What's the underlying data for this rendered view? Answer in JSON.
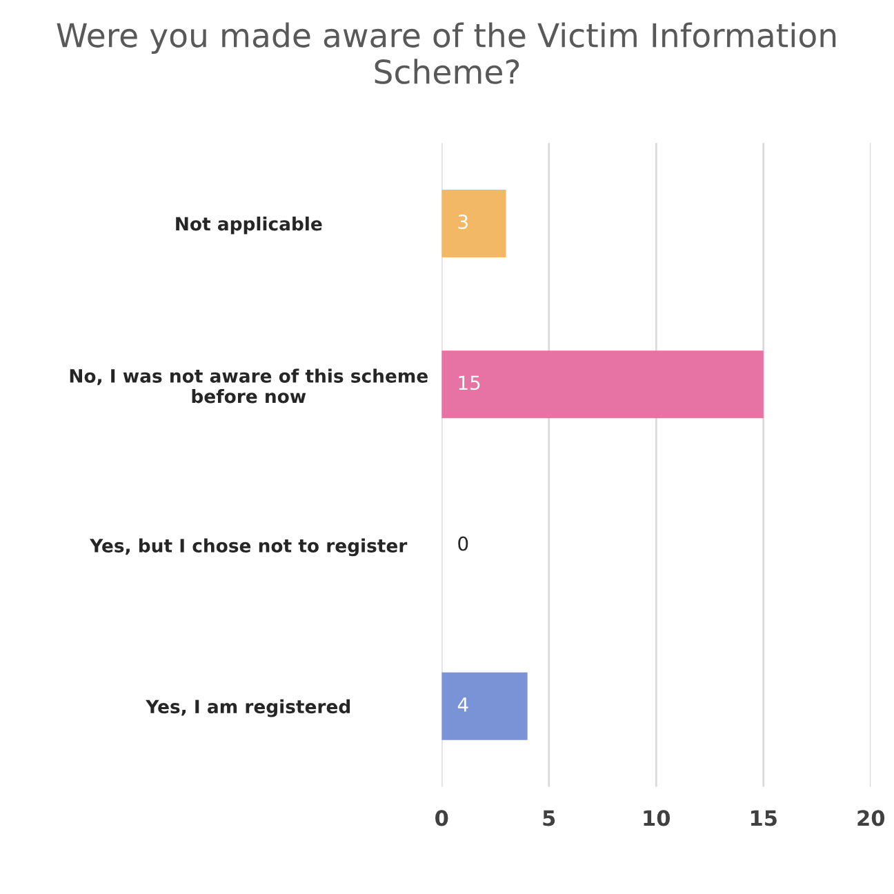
{
  "chart_data": {
    "type": "bar",
    "orientation": "horizontal",
    "title": "Were you made aware of the Victim Information Scheme?",
    "categories": [
      "Not applicable",
      "No, I was not aware of this scheme\nbefore now",
      "Yes, but I chose not to register",
      "Yes, I am registered"
    ],
    "values": [
      3,
      15,
      0,
      4
    ],
    "colors": [
      "#f2b866",
      "#e673a3",
      "#8fa3d9",
      "#7a93d6"
    ],
    "xlim": [
      0,
      20
    ],
    "xticks": [
      0,
      5,
      10,
      15,
      20
    ],
    "grid": "x",
    "data_labels": true
  }
}
